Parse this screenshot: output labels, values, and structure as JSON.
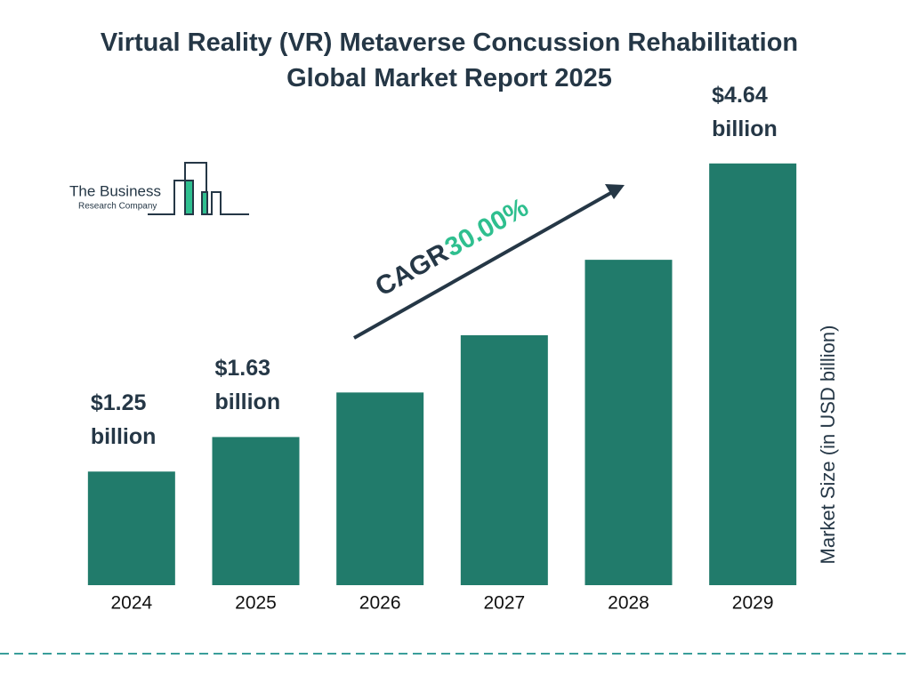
{
  "chart_data": {
    "type": "bar",
    "title": [
      "Virtual Reality (VR) Metaverse Concussion Rehabilitation",
      "Global Market Report 2025"
    ],
    "categories": [
      "2024",
      "2025",
      "2026",
      "2027",
      "2028",
      "2029"
    ],
    "values": [
      1.25,
      1.63,
      2.12,
      2.75,
      3.58,
      4.64
    ],
    "value_labels": [
      "$1.25 billion",
      "$1.63 billion",
      null,
      null,
      null,
      "$4.64 billion"
    ],
    "color": "#217b6b",
    "ylim": [
      0,
      5
    ],
    "y_axis_label": "Market Size (in USD billion)",
    "cagr_label": "CAGR",
    "cagr": "30.00%",
    "logo": {
      "line1": "The Business",
      "line2": "Research Company"
    }
  }
}
